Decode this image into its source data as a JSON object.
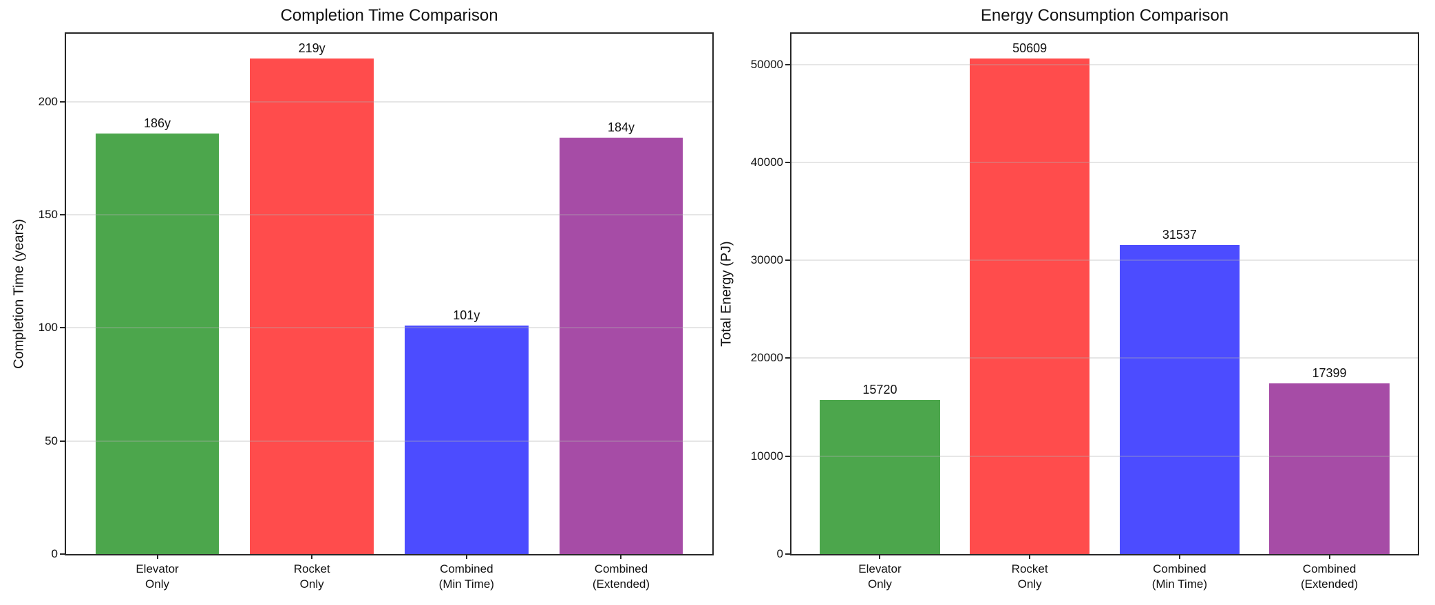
{
  "figure": {
    "background": "#ffffff",
    "text_color": "#111111"
  },
  "chart_data": [
    {
      "type": "bar",
      "title": "Completion Time Comparison",
      "xlabel": "",
      "ylabel": "Completion Time (years)",
      "categories": [
        "Elevator\nOnly",
        "Rocket\nOnly",
        "Combined\n(Min Time)",
        "Combined\n(Extended)"
      ],
      "values": [
        186,
        219,
        101,
        184
      ],
      "bar_labels": [
        "186y",
        "219y",
        "101y",
        "184y"
      ],
      "bar_colors": [
        "#4CA64C",
        "#FF4C4C",
        "#4C4CFF",
        "#A64CA6"
      ],
      "yticks": [
        0,
        50,
        100,
        150,
        200
      ],
      "ytick_labels": [
        "0",
        "50",
        "100",
        "150",
        "200"
      ],
      "ylim": [
        0,
        230
      ],
      "bar_width_fraction": 0.8,
      "grid": true,
      "legend": null
    },
    {
      "type": "bar",
      "title": "Energy Consumption Comparison",
      "xlabel": "",
      "ylabel": "Total Energy (PJ)",
      "categories": [
        "Elevator\nOnly",
        "Rocket\nOnly",
        "Combined\n(Min Time)",
        "Combined\n(Extended)"
      ],
      "values": [
        15720,
        50609,
        31537,
        17399
      ],
      "bar_labels": [
        "15720",
        "50609",
        "31537",
        "17399"
      ],
      "bar_colors": [
        "#4CA64C",
        "#FF4C4C",
        "#4C4CFF",
        "#A64CA6"
      ],
      "yticks": [
        0,
        10000,
        20000,
        30000,
        40000,
        50000
      ],
      "ytick_labels": [
        "0",
        "10000",
        "20000",
        "30000",
        "40000",
        "50000"
      ],
      "ylim": [
        0,
        53139
      ],
      "bar_width_fraction": 0.8,
      "grid": true,
      "legend": null
    }
  ]
}
